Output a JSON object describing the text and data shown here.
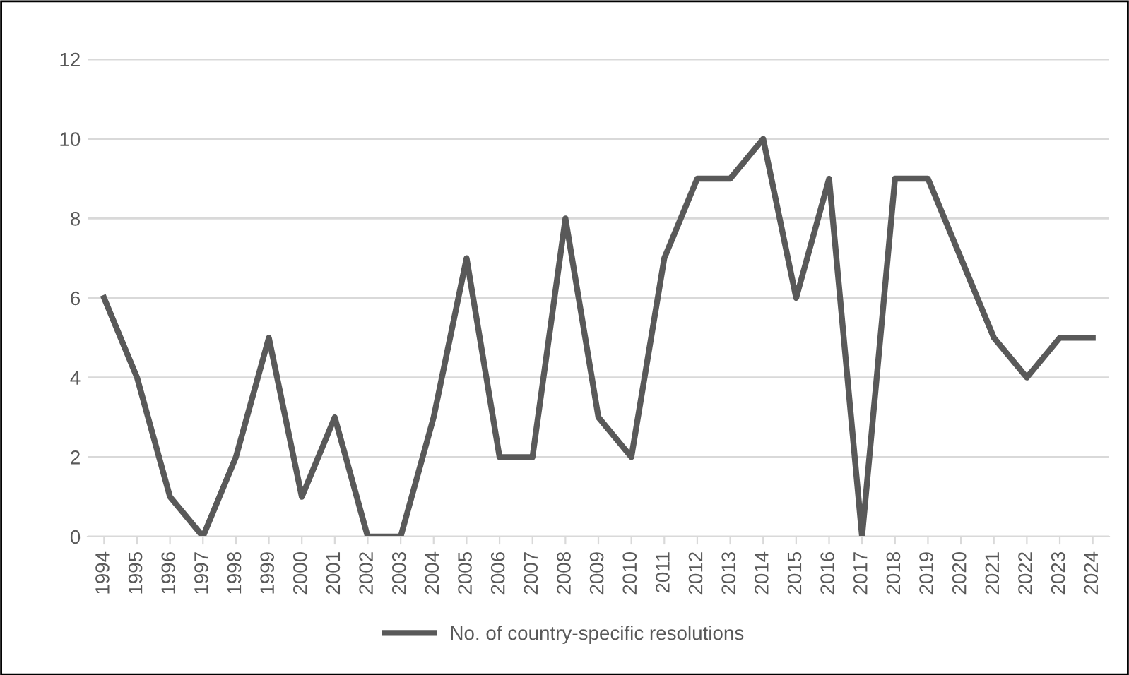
{
  "chart_data": {
    "type": "line",
    "categories": [
      "1994",
      "1995",
      "1996",
      "1997",
      "1998",
      "1999",
      "2000",
      "2001",
      "2002",
      "2003",
      "2004",
      "2005",
      "2006",
      "2007",
      "2008",
      "2009",
      "2010",
      "2011",
      "2012",
      "2013",
      "2014",
      "2015",
      "2016",
      "2017",
      "2018",
      "2019",
      "2020",
      "2021",
      "2022",
      "2023",
      "2024"
    ],
    "series": [
      {
        "name": "No. of country-specific resolutions",
        "color": "#595959",
        "values": [
          6,
          4,
          1,
          0,
          2,
          5,
          1,
          3,
          0,
          0,
          3,
          7,
          2,
          2,
          8,
          3,
          2,
          7,
          9,
          9,
          10,
          6,
          9,
          0,
          9,
          9,
          7,
          5,
          4,
          5,
          5
        ]
      }
    ],
    "ylim": [
      0,
      12
    ],
    "yticks": [
      0,
      2,
      4,
      6,
      8,
      10,
      12
    ],
    "grid": "y",
    "legend": "bottom",
    "marker": "none",
    "line_style": "solid"
  }
}
